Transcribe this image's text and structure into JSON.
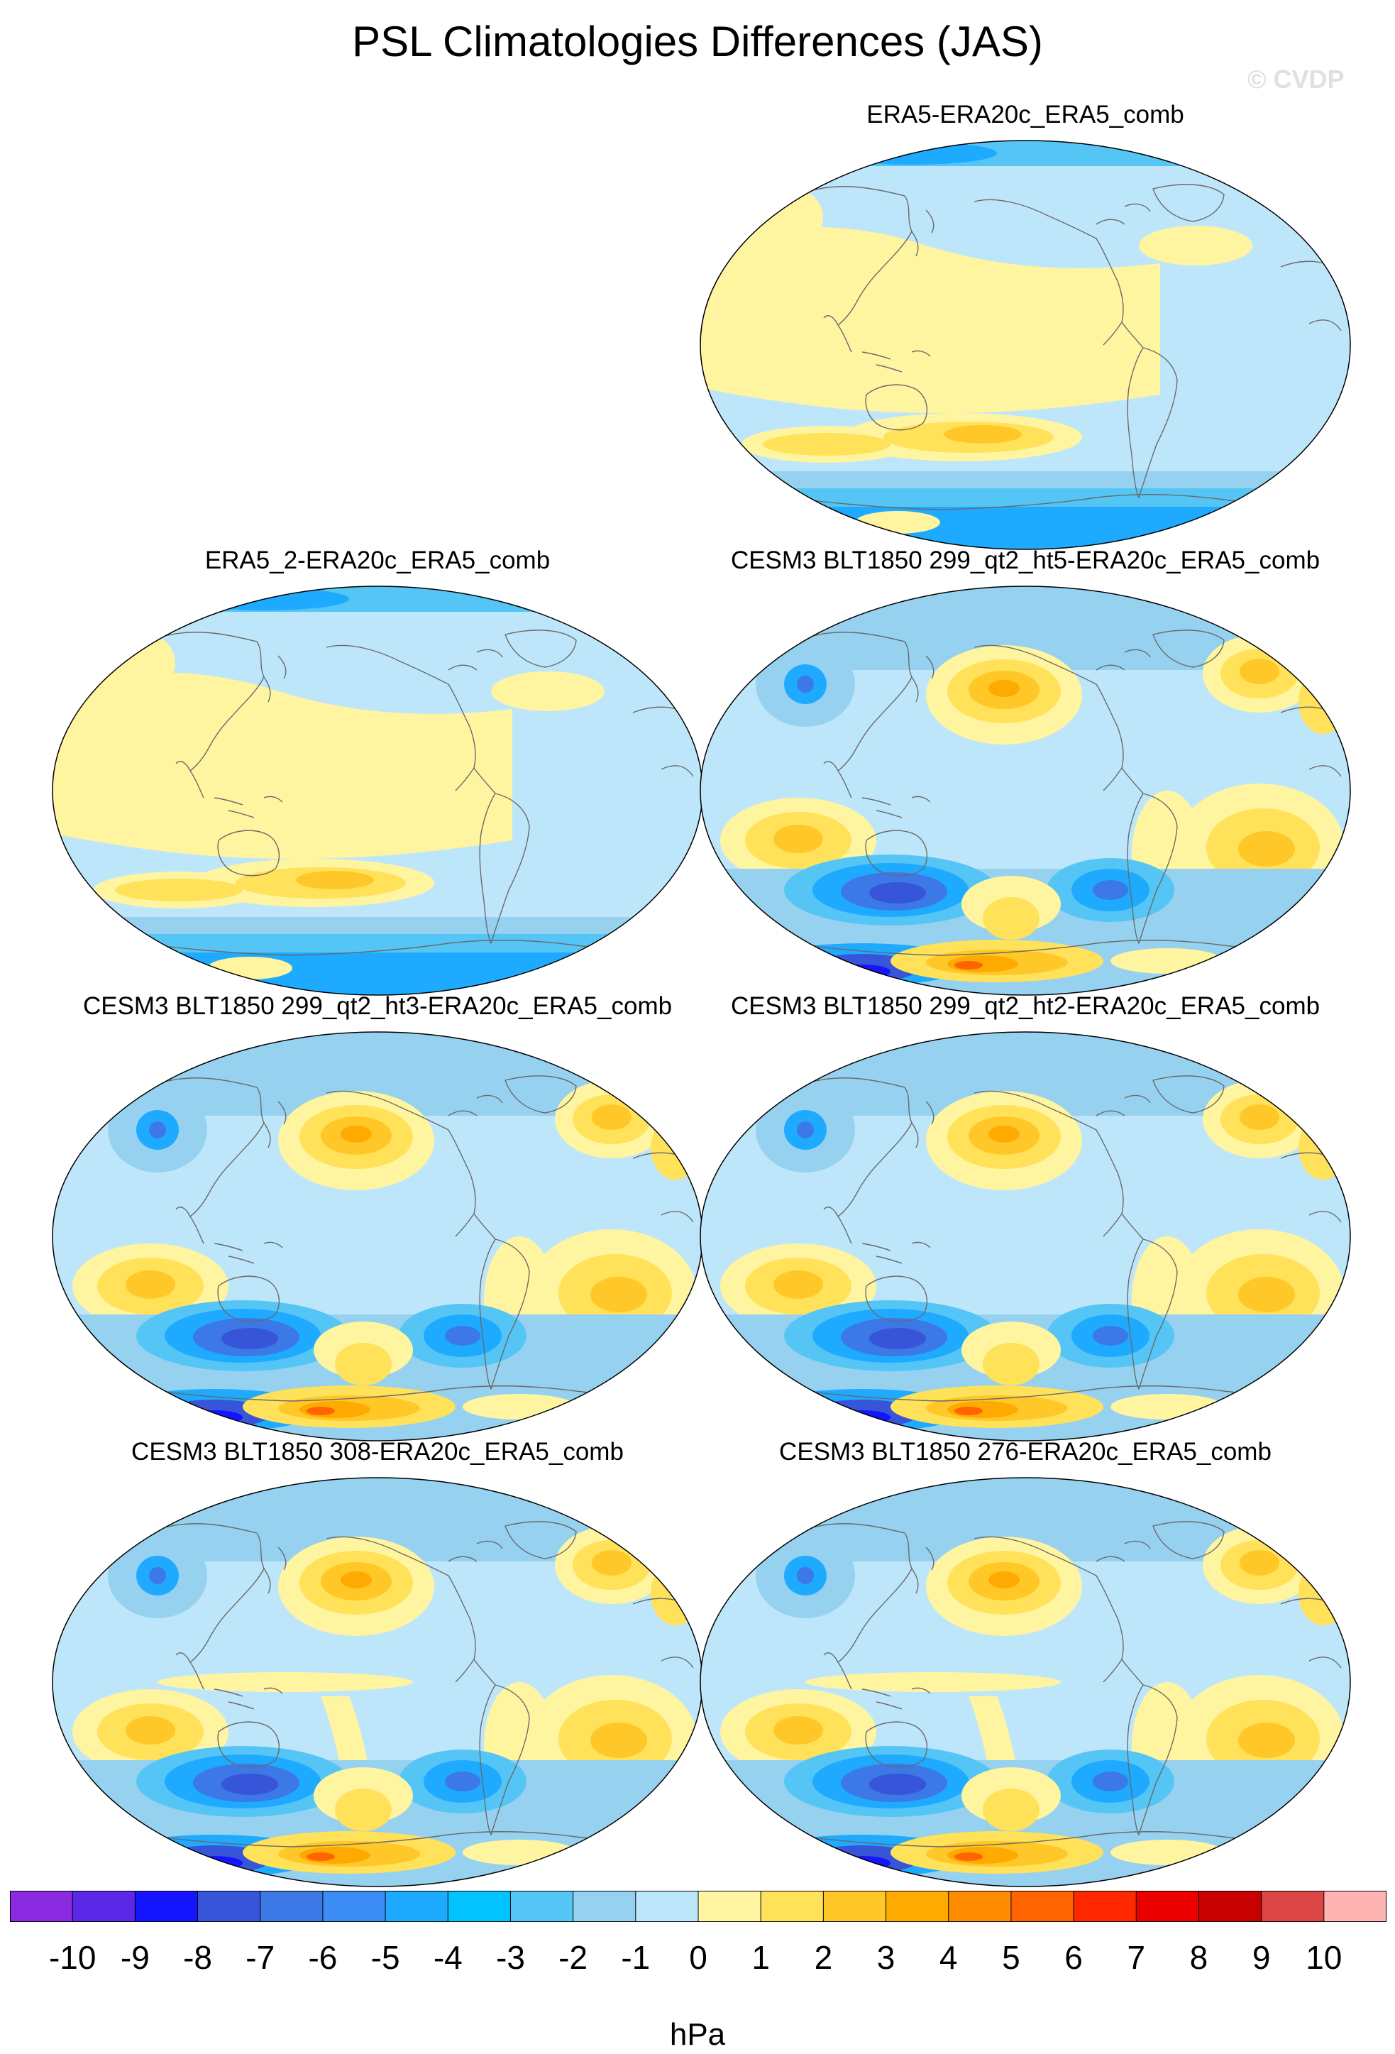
{
  "title": "PSL Climatologies Differences (JAS)",
  "watermark": "© CVDP",
  "panels": [
    {
      "title": "ERA5-ERA20c_ERA5_comb",
      "pattern": "reanalysis"
    },
    {
      "title": "ERA5_2-ERA20c_ERA5_comb",
      "pattern": "reanalysis"
    },
    {
      "title": "CESM3 BLT1850 299_qt2_ht5-ERA20c_ERA5_comb",
      "pattern": "model"
    },
    {
      "title": "CESM3 BLT1850 299_qt2_ht3-ERA20c_ERA5_comb",
      "pattern": "model"
    },
    {
      "title": "CESM3 BLT1850 299_qt2_ht2-ERA20c_ERA5_comb",
      "pattern": "model"
    },
    {
      "title": "CESM3 BLT1850 308-ERA20c_ERA5_comb",
      "pattern": "model_tropical"
    },
    {
      "title": "CESM3 BLT1850 276-ERA20c_ERA5_comb",
      "pattern": "model_tropical"
    }
  ],
  "colorbar": {
    "units": "hPa",
    "labels": [
      "-10",
      "-9",
      "-8",
      "-7",
      "-6",
      "-5",
      "-4",
      "-3",
      "-2",
      "-1",
      "0",
      "1",
      "2",
      "3",
      "4",
      "5",
      "6",
      "7",
      "8",
      "9",
      "10"
    ],
    "colors": [
      "#8a2be2",
      "#5a28e6",
      "#1414ff",
      "#3755d9",
      "#3c78e6",
      "#3c8cf5",
      "#1eaaff",
      "#00c3ff",
      "#55c5f5",
      "#96d2f0",
      "#bee6fa",
      "#fff5a0",
      "#ffe15a",
      "#ffc828",
      "#ffaa00",
      "#ff8c00",
      "#ff6400",
      "#ff2800",
      "#eb0000",
      "#c80000",
      "#dc4646",
      "#ffb4b4"
    ]
  }
}
